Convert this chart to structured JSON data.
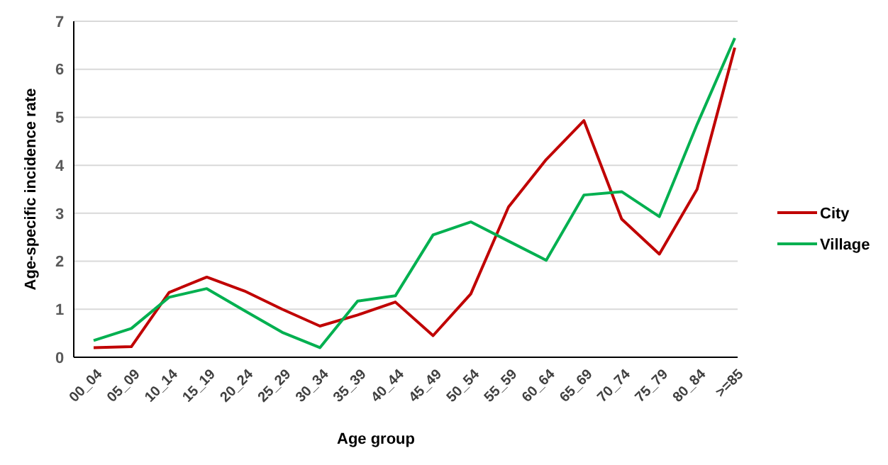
{
  "chart_data": {
    "type": "line",
    "xlabel": "Age group",
    "ylabel": "Age-specific incidence rate",
    "categories": [
      "00_04",
      "05_09",
      "10_14",
      "15_19",
      "20_24",
      "25_29",
      "30_34",
      "35_39",
      "40_44",
      "45_49",
      "50_54",
      "55_59",
      "60_64",
      "65_69",
      "70_74",
      "75_79",
      "80_84",
      ">=85"
    ],
    "series": [
      {
        "name": "City",
        "color": "#c00000",
        "values": [
          0.2,
          0.22,
          1.35,
          1.67,
          1.38,
          1.0,
          0.65,
          0.88,
          1.15,
          0.45,
          1.32,
          3.13,
          4.12,
          4.93,
          2.88,
          2.15,
          3.5,
          6.45
        ]
      },
      {
        "name": "Village",
        "color": "#00b050",
        "values": [
          0.35,
          0.6,
          1.25,
          1.43,
          0.97,
          0.52,
          0.2,
          1.17,
          1.28,
          2.55,
          2.82,
          2.42,
          2.02,
          3.38,
          3.45,
          2.93,
          4.85,
          6.65
        ]
      }
    ],
    "ylim": [
      0,
      7
    ],
    "yticks": [
      0,
      1,
      2,
      3,
      4,
      5,
      6,
      7
    ],
    "grid": "y",
    "legend": "right",
    "marker": "none",
    "line_style": "solid"
  }
}
